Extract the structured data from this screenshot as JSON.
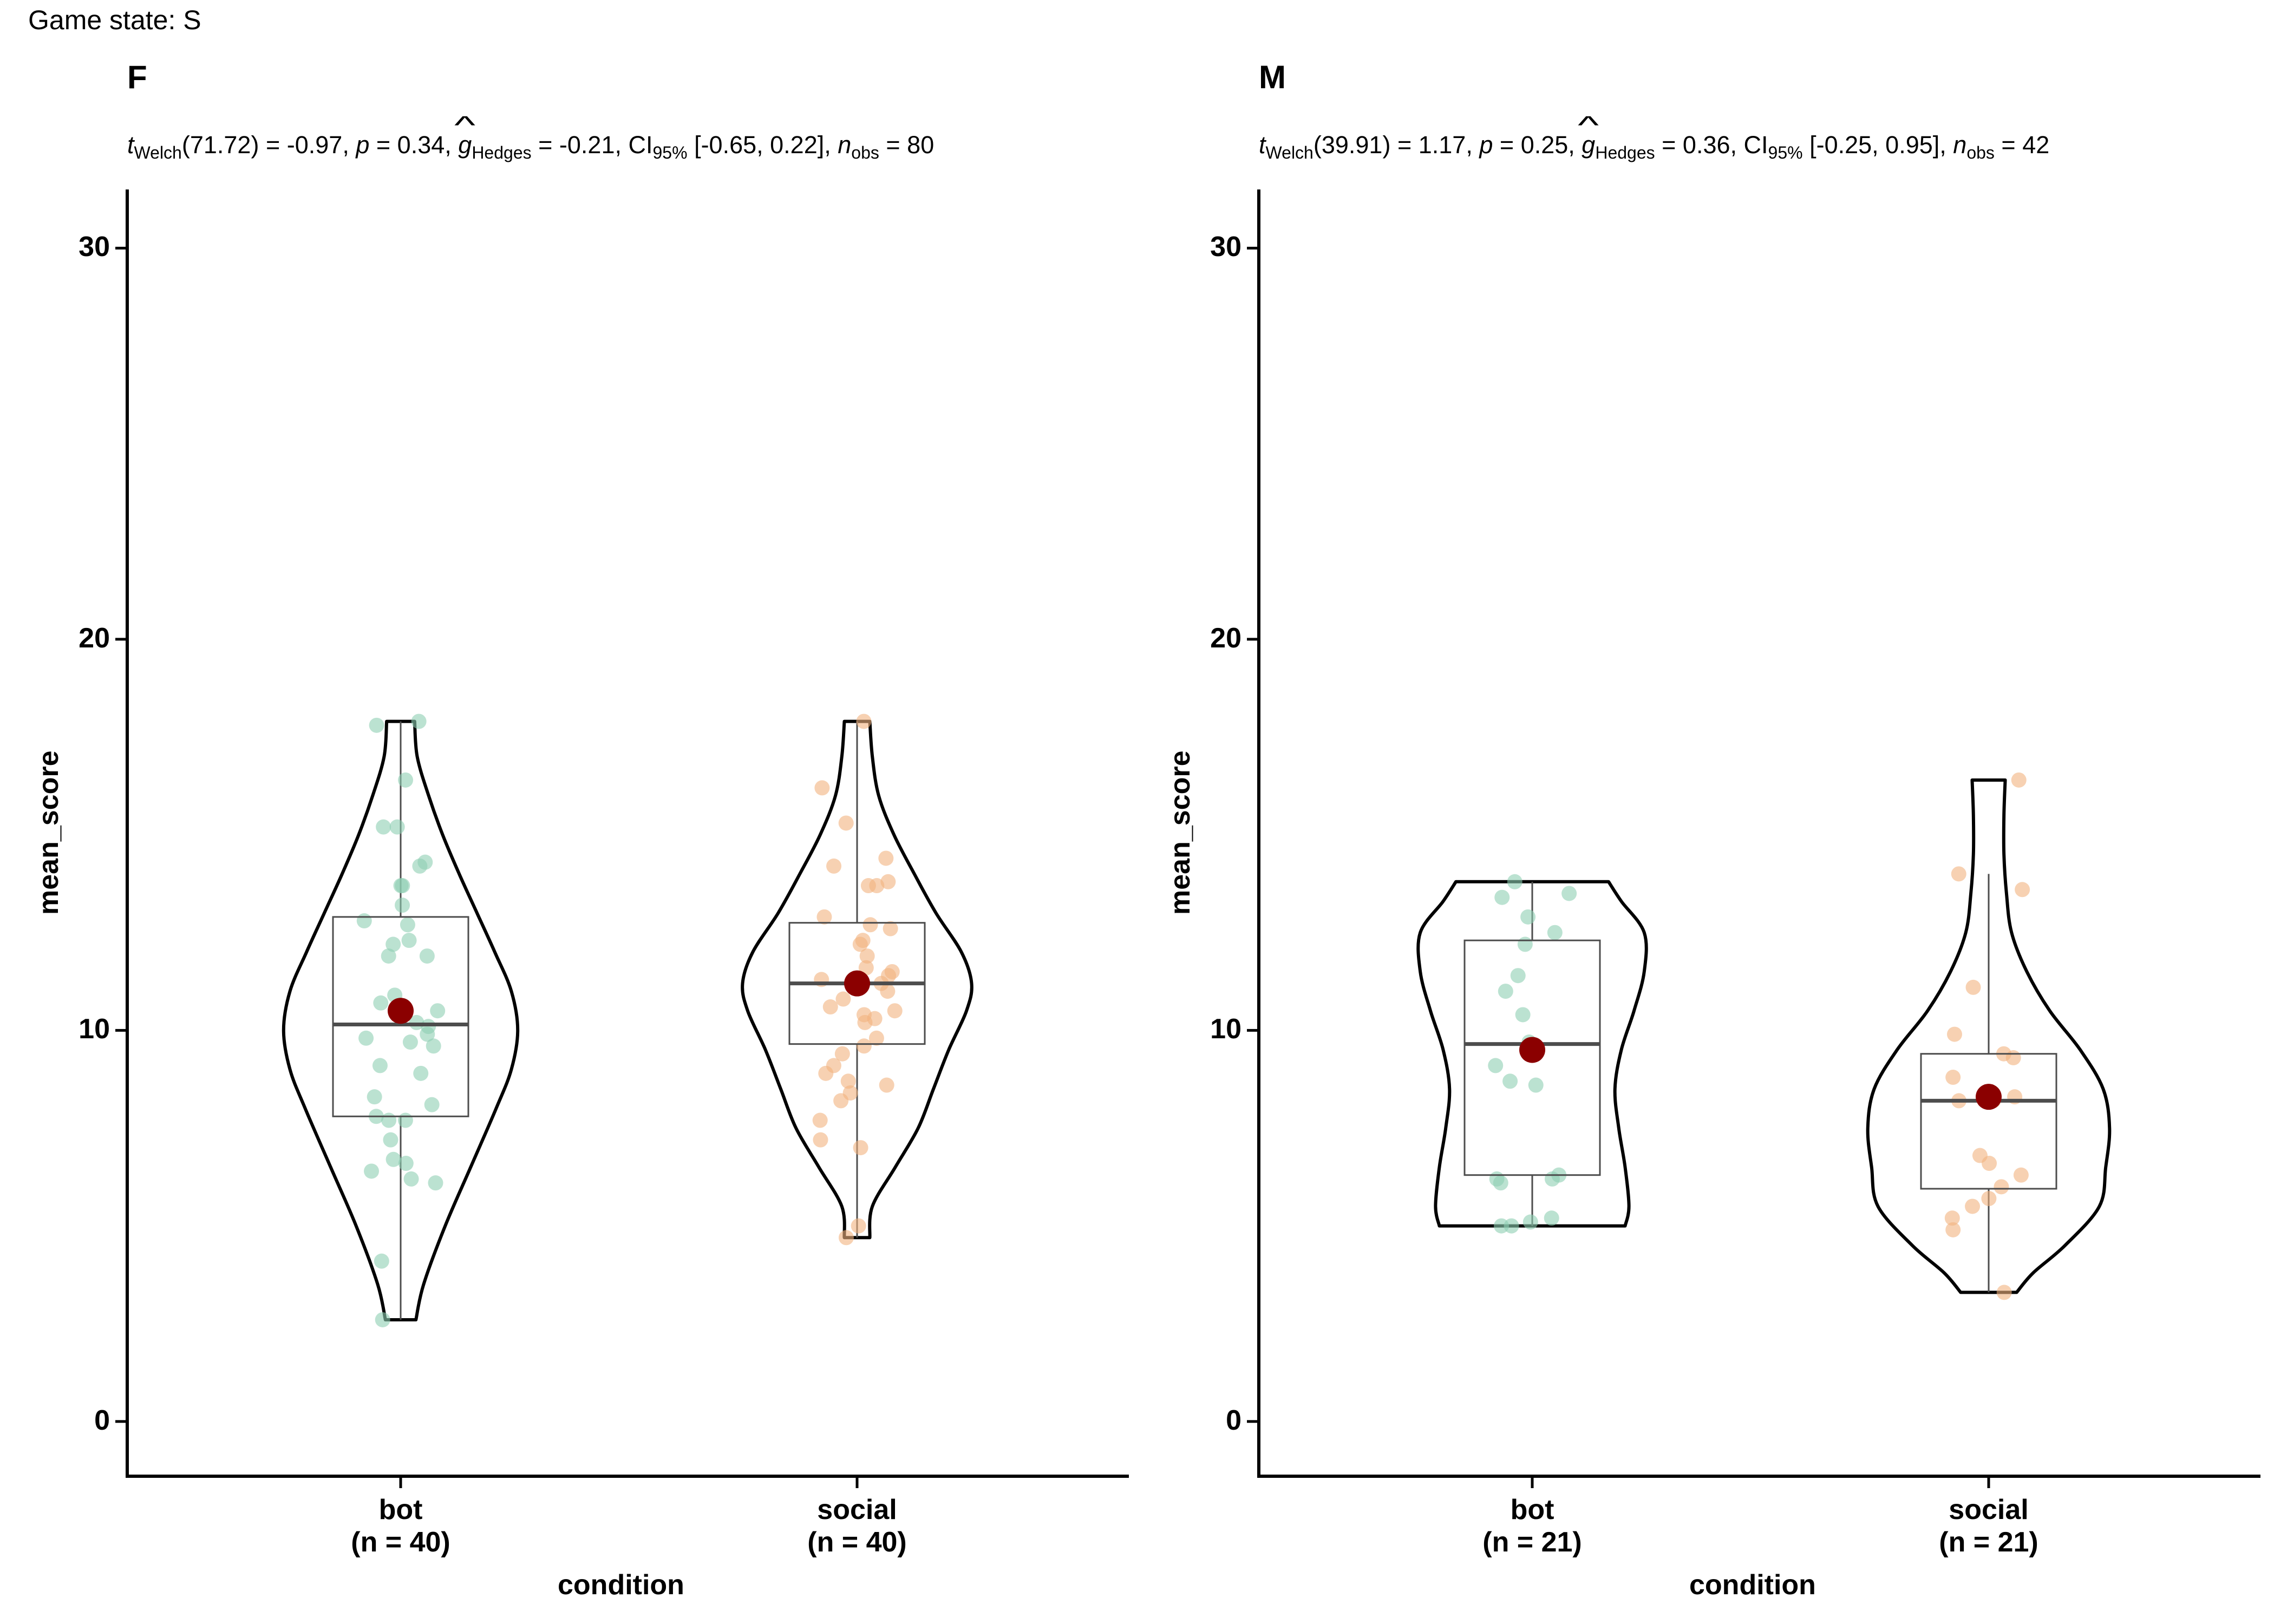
{
  "suptitle": "Game state: S",
  "colors": {
    "bot": "#8ecfb3",
    "social": "#f2b27f",
    "mean": "#8b0000",
    "box": "#4d4d4d"
  },
  "chart_data": [
    {
      "type": "violin",
      "title": "F",
      "stats": {
        "df": "71.72",
        "t": "-0.97",
        "p": "0.34",
        "g": "-0.21",
        "ci": "[-0.65, 0.22]",
        "n": "80"
      },
      "xlabel": "condition",
      "ylabel": "mean_score",
      "ylim": [
        -1.4,
        31.5
      ],
      "yticks": [
        0,
        10,
        20,
        30
      ],
      "groups": [
        {
          "name": "bot",
          "n_label": "(n = 40)",
          "median": 10.15,
          "q1": 7.8,
          "q3": 12.9,
          "mean": 10.5,
          "whisker_low": 2.6,
          "whisker_high": 17.9,
          "vmin": 2.6,
          "vmax": 17.9,
          "points": [
            17.8,
            17.9,
            16.4,
            15.2,
            15.2,
            14.3,
            14.2,
            13.7,
            13.7,
            13.2,
            12.8,
            12.7,
            12.3,
            12.2,
            11.9,
            11.9,
            10.9,
            10.7,
            10.5,
            10.2,
            10.1,
            9.9,
            9.8,
            9.7,
            9.6,
            9.1,
            8.9,
            8.3,
            8.1,
            7.8,
            7.7,
            7.7,
            7.2,
            6.7,
            6.6,
            6.4,
            6.2,
            6.1,
            4.1,
            2.6
          ],
          "violin": [
            [
              2.6,
              0.12
            ],
            [
              3.5,
              0.18
            ],
            [
              5,
              0.35
            ],
            [
              6.5,
              0.55
            ],
            [
              8,
              0.75
            ],
            [
              9,
              0.87
            ],
            [
              10,
              0.92
            ],
            [
              11,
              0.87
            ],
            [
              12,
              0.74
            ],
            [
              13,
              0.6
            ],
            [
              14,
              0.46
            ],
            [
              15,
              0.33
            ],
            [
              16,
              0.22
            ],
            [
              17,
              0.13
            ],
            [
              17.9,
              0.11
            ]
          ]
        },
        {
          "name": "social",
          "n_label": "(n = 40)",
          "median": 11.2,
          "q1": 9.65,
          "q3": 12.75,
          "mean": 11.2,
          "whisker_low": 4.7,
          "whisker_high": 17.9,
          "vmin": 4.7,
          "vmax": 17.9,
          "points": [
            17.9,
            16.2,
            15.3,
            14.4,
            14.2,
            13.8,
            13.7,
            13.7,
            12.9,
            12.7,
            12.6,
            12.3,
            12.2,
            11.9,
            11.6,
            11.5,
            11.4,
            11.3,
            11.2,
            11.0,
            10.8,
            10.6,
            10.5,
            10.4,
            10.3,
            10.2,
            9.8,
            9.6,
            9.4,
            9.1,
            8.9,
            8.7,
            8.6,
            8.4,
            8.2,
            7.7,
            7.2,
            7.0,
            5.0,
            4.7
          ],
          "violin": [
            [
              4.7,
              0.1
            ],
            [
              5.5,
              0.12
            ],
            [
              6.5,
              0.3
            ],
            [
              7.5,
              0.48
            ],
            [
              8.5,
              0.6
            ],
            [
              9.5,
              0.72
            ],
            [
              10.5,
              0.86
            ],
            [
              11.2,
              0.9
            ],
            [
              12,
              0.82
            ],
            [
              13,
              0.62
            ],
            [
              14,
              0.45
            ],
            [
              15,
              0.29
            ],
            [
              16,
              0.17
            ],
            [
              17,
              0.12
            ],
            [
              17.9,
              0.1
            ]
          ]
        }
      ]
    },
    {
      "type": "violin",
      "title": "M",
      "stats": {
        "df": "39.91",
        "t": "1.17",
        "p": "0.25",
        "g": "0.36",
        "ci": "[-0.25, 0.95]",
        "n": "42"
      },
      "xlabel": "condition",
      "ylabel": "mean_score",
      "ylim": [
        -1.4,
        31.5
      ],
      "yticks": [
        0,
        10,
        20,
        30
      ],
      "groups": [
        {
          "name": "bot",
          "n_label": "(n = 21)",
          "median": 9.65,
          "q1": 6.3,
          "q3": 12.3,
          "mean": 9.5,
          "whisker_low": 5.0,
          "whisker_high": 13.8,
          "vmin": 5.0,
          "vmax": 13.8,
          "points": [
            13.8,
            13.5,
            13.4,
            12.9,
            12.5,
            12.2,
            11.4,
            11.0,
            10.4,
            9.7,
            9.1,
            8.7,
            8.6,
            6.3,
            6.2,
            6.2,
            6.1,
            5.2,
            5.1,
            5.0,
            5.0
          ],
          "violin": [
            [
              5.0,
              0.73
            ],
            [
              5.5,
              0.76
            ],
            [
              6.5,
              0.73
            ],
            [
              7.5,
              0.68
            ],
            [
              8.5,
              0.65
            ],
            [
              9.5,
              0.7
            ],
            [
              10.5,
              0.8
            ],
            [
              11.5,
              0.88
            ],
            [
              12.5,
              0.88
            ],
            [
              13.3,
              0.7
            ],
            [
              13.8,
              0.6
            ]
          ]
        },
        {
          "name": "social",
          "n_label": "(n = 21)",
          "median": 8.2,
          "q1": 5.95,
          "q3": 9.4,
          "mean": 8.3,
          "whisker_low": 3.3,
          "whisker_high": 14.0,
          "vmin": 3.3,
          "vmax": 16.4,
          "points": [
            16.4,
            14.0,
            13.6,
            11.1,
            9.9,
            9.4,
            9.3,
            8.8,
            8.4,
            8.3,
            8.2,
            8.2,
            6.8,
            6.6,
            6.3,
            6.0,
            5.7,
            5.5,
            5.2,
            4.9,
            3.3
          ],
          "violin": [
            [
              3.3,
              0.22
            ],
            [
              3.8,
              0.35
            ],
            [
              4.5,
              0.6
            ],
            [
              5.5,
              0.87
            ],
            [
              6.5,
              0.92
            ],
            [
              7.5,
              0.95
            ],
            [
              8.5,
              0.9
            ],
            [
              9.5,
              0.72
            ],
            [
              10.5,
              0.48
            ],
            [
              11.5,
              0.3
            ],
            [
              12.5,
              0.18
            ],
            [
              13.5,
              0.14
            ],
            [
              14.5,
              0.12
            ],
            [
              15.5,
              0.12
            ],
            [
              16.4,
              0.13
            ]
          ]
        }
      ]
    }
  ]
}
